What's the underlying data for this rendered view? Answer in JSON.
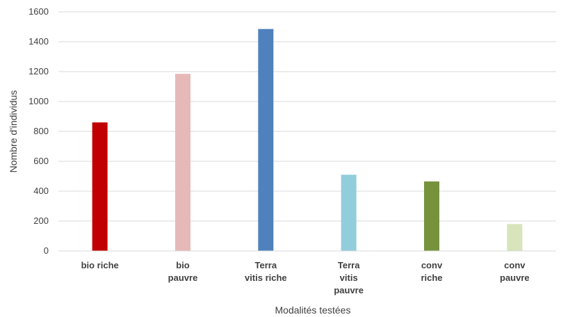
{
  "chart_data": {
    "type": "bar",
    "title": "",
    "xlabel": "Modalités testées",
    "ylabel": "Nombre d'individus",
    "ylim": [
      0,
      1600
    ],
    "yticks": [
      "0",
      "200",
      "400",
      "600",
      "800",
      "1000",
      "1200",
      "1400",
      "1600"
    ],
    "grid": true,
    "legend": "none",
    "categories": [
      [
        "bio riche"
      ],
      [
        "bio",
        "pauvre"
      ],
      [
        "Terra",
        "vitis riche"
      ],
      [
        "Terra",
        "vitis",
        "pauvre"
      ],
      [
        "conv",
        "riche"
      ],
      [
        "conv",
        "pauvre"
      ]
    ],
    "values": [
      860,
      1185,
      1485,
      510,
      465,
      180
    ],
    "colors": [
      "#c00000",
      "#e6b9b8",
      "#4f81bd",
      "#92cddc",
      "#76933c",
      "#d7e4bc"
    ]
  }
}
